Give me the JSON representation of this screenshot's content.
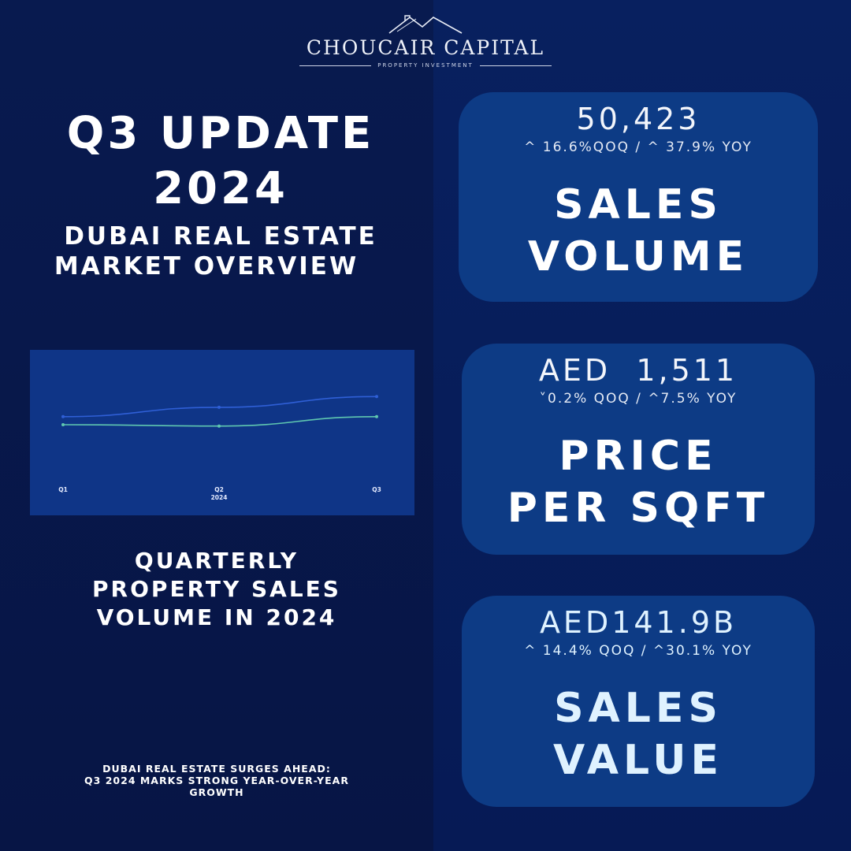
{
  "brand": {
    "name": "CHOUCAIR CAPITAL",
    "tagline": "PROPERTY INVESTMENT"
  },
  "headline": {
    "line1": "Q3 UPDATE",
    "line2": "2024",
    "line3": "DUBAI REAL ESTATE",
    "line4": "MARKET OVERVIEW"
  },
  "chart_caption": {
    "line1": "QUARTERLY",
    "line2": "PROPERTY SALES",
    "line3": "VOLUME IN 2024"
  },
  "footer_note": {
    "line1": "DUBAI REAL ESTATE SURGES AHEAD:",
    "line2": "Q3 2024 MARKS STRONG YEAR-OVER-YEAR",
    "line3": "GROWTH"
  },
  "cards": [
    {
      "value": "50,423",
      "change": "^ 16.6%QOQ / ^ 37.9% YOY",
      "label_line1": "SALES",
      "label_line2": "VOLUME"
    },
    {
      "value": "AED  1,511",
      "change": "˅0.2% QOQ / ^7.5% YOY",
      "label_line1": "PRICE",
      "label_line2": "PER SQFT"
    },
    {
      "value": "AED141.9B",
      "change": "^ 14.4% QOQ / ^30.1% YOY",
      "label_line1": "SALES",
      "label_line2": "VALUE"
    }
  ],
  "colors": {
    "series_upper": "#2f5fd6",
    "series_lower": "#5fc7b0",
    "chart_bg": "#0f3587",
    "card_bg": "#0d3b85"
  },
  "chart_data": {
    "type": "line",
    "categories": [
      "Q1",
      "Q2",
      "Q3"
    ],
    "x_group_label": "2024",
    "ylim": [
      0,
      100
    ],
    "grid": false,
    "legend": "none",
    "series": [
      {
        "values": [
          56,
          63,
          71
        ]
      },
      {
        "values": [
          50,
          49,
          56
        ]
      }
    ]
  }
}
